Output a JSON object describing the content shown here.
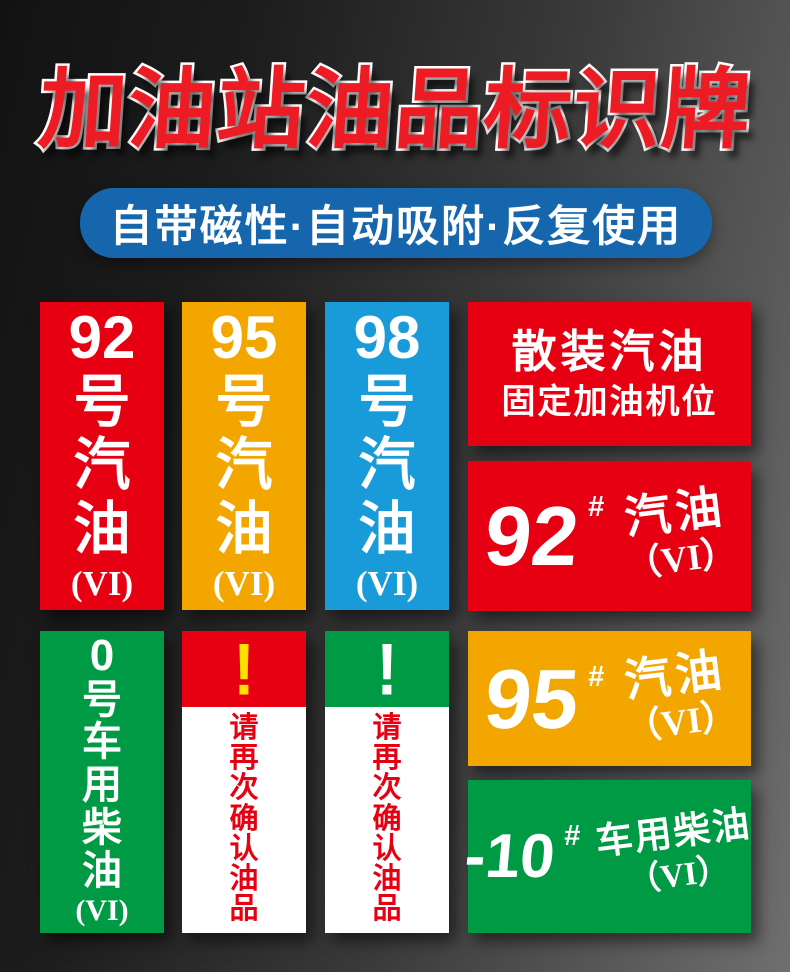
{
  "title": {
    "text": "加油站油品标识牌"
  },
  "banner": {
    "text": "自带磁性·自动吸附·反复使用"
  },
  "colors": {
    "title_red": "#ed1c24",
    "banner_blue": "#1566ad",
    "red": "#e60012",
    "orange": "#f4a600",
    "blue": "#1a9bd9",
    "green": "#009a44",
    "white": "#ffffff",
    "warn_text_red": "#e60012",
    "exclaim_yellow": "#ffe100",
    "exclaim_white": "#ffffff"
  },
  "gasoline_columns": [
    {
      "number": "92",
      "chars": [
        "号",
        "汽",
        "油"
      ],
      "grade": "(VI)"
    },
    {
      "number": "95",
      "chars": [
        "号",
        "汽",
        "油"
      ],
      "grade": "(VI)"
    },
    {
      "number": "98",
      "chars": [
        "号",
        "汽",
        "油"
      ],
      "grade": "(VI)"
    }
  ],
  "diesel_column": {
    "number": "0",
    "chars": [
      "号",
      "车",
      "用",
      "柴",
      "油"
    ],
    "grade": "(VI)"
  },
  "warning_labels": [
    {
      "mark": "!",
      "chars": [
        "请",
        "再",
        "次",
        "确",
        "认",
        "油",
        "品"
      ]
    },
    {
      "mark": "!",
      "chars": [
        "请",
        "再",
        "次",
        "确",
        "认",
        "油",
        "品"
      ]
    }
  ],
  "panels": {
    "bulk": {
      "line1": "散装汽油",
      "line2": "固定加油机位"
    },
    "g92": {
      "number": "92",
      "hash": "#",
      "product": "汽油",
      "grade": "（VI）"
    },
    "g95": {
      "number": "95",
      "hash": "#",
      "product": "汽油",
      "grade": "（VI）"
    },
    "d10": {
      "number": "-10",
      "hash": "#",
      "product": "车用柴油",
      "grade": "（VI）"
    }
  }
}
